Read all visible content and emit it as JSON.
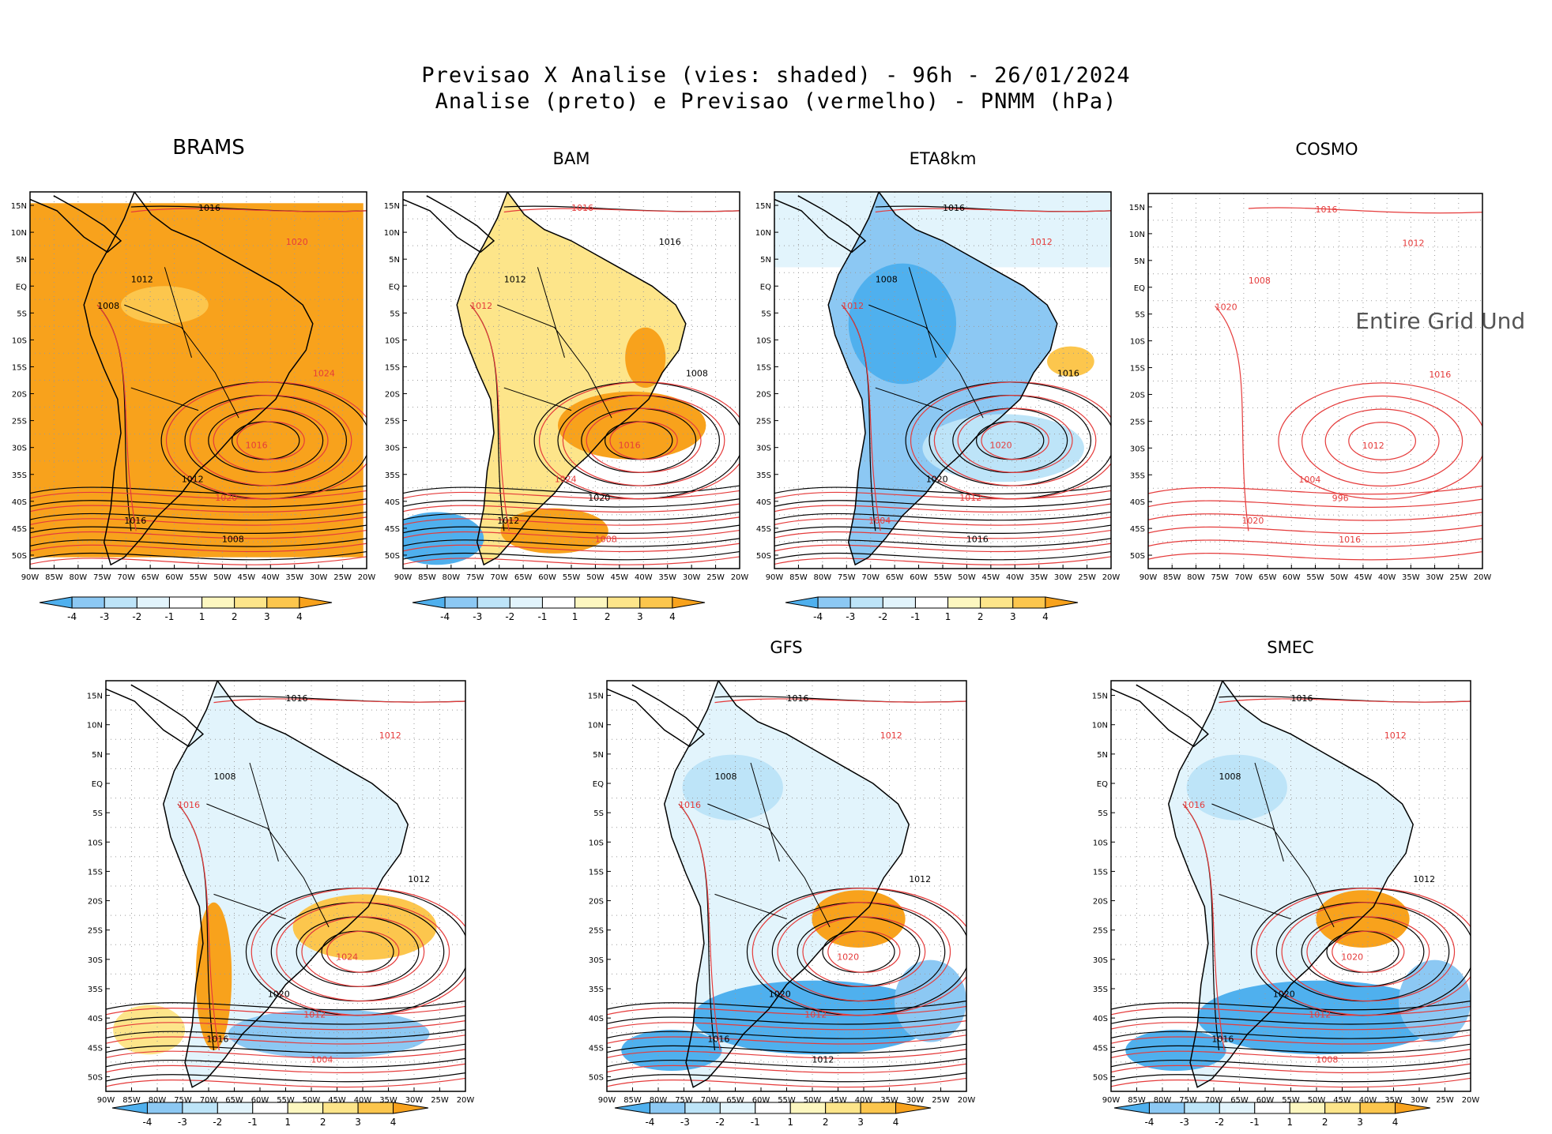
{
  "title": {
    "line1": "Previsao X Analise (vies: shaded) - 96h - 26/01/2024",
    "line2": "Analise (preto) e Previsao (vermelho) - PNMM (hPa)"
  },
  "axes": {
    "lat_labels": [
      "15N",
      "10N",
      "5N",
      "EQ",
      "5S",
      "10S",
      "15S",
      "20S",
      "25S",
      "30S",
      "35S",
      "40S",
      "45S",
      "50S"
    ],
    "lon_labels": [
      "90W",
      "85W",
      "80W",
      "75W",
      "70W",
      "65W",
      "60W",
      "55W",
      "50W",
      "45W",
      "40W",
      "35W",
      "30W",
      "25W",
      "20W"
    ]
  },
  "colorbar": {
    "labels": [
      "-4",
      "-3",
      "-2",
      "-1",
      "1",
      "2",
      "3",
      "4"
    ],
    "colors": [
      "#4fb0ee",
      "#8cc8f3",
      "#bde4f8",
      "#e2f4fc",
      "#ffffff",
      "#fdf7c0",
      "#fde58a",
      "#fcc64d",
      "#f8a21c"
    ]
  },
  "contour_colors": {
    "analysis": "#000000",
    "forecast": "#e53b3b"
  },
  "panels": [
    {
      "id": "brams",
      "title": "BRAMS",
      "bias": "orange",
      "labels": [
        {
          "t": "1016",
          "c": "k"
        },
        {
          "t": "1020",
          "c": "r"
        },
        {
          "t": "1012",
          "c": "k"
        },
        {
          "t": "1008",
          "c": "k"
        },
        {
          "t": "1024",
          "c": "r"
        },
        {
          "t": "1016",
          "c": "r"
        },
        {
          "t": "1012",
          "c": "k"
        },
        {
          "t": "1020",
          "c": "r"
        },
        {
          "t": "1016",
          "c": "k"
        },
        {
          "t": "1008",
          "c": "k"
        }
      ]
    },
    {
      "id": "bam",
      "title": "BAM",
      "bias": "mixed-warm",
      "labels": [
        {
          "t": "1016",
          "c": "r"
        },
        {
          "t": "1016",
          "c": "k"
        },
        {
          "t": "1012",
          "c": "k"
        },
        {
          "t": "1012",
          "c": "r"
        },
        {
          "t": "1008",
          "c": "k"
        },
        {
          "t": "1016",
          "c": "r"
        },
        {
          "t": "1024",
          "c": "r"
        },
        {
          "t": "1020",
          "c": "k"
        },
        {
          "t": "1012",
          "c": "k"
        },
        {
          "t": "1008",
          "c": "r"
        }
      ]
    },
    {
      "id": "eta8km",
      "title": "ETA8km",
      "bias": "mixed-cold",
      "labels": [
        {
          "t": "1016",
          "c": "k"
        },
        {
          "t": "1012",
          "c": "r"
        },
        {
          "t": "1008",
          "c": "k"
        },
        {
          "t": "1012",
          "c": "r"
        },
        {
          "t": "1016",
          "c": "k"
        },
        {
          "t": "1020",
          "c": "r"
        },
        {
          "t": "1020",
          "c": "k"
        },
        {
          "t": "1012",
          "c": "r"
        },
        {
          "t": "1004",
          "c": "r"
        },
        {
          "t": "1016",
          "c": "k"
        }
      ]
    },
    {
      "id": "cosmo",
      "title": "COSMO",
      "bias": "none",
      "annotation": "Entire Grid Und",
      "labels": [
        {
          "t": "1016",
          "c": "r"
        },
        {
          "t": "1012",
          "c": "r"
        },
        {
          "t": "1008",
          "c": "r"
        },
        {
          "t": "1020",
          "c": "r"
        },
        {
          "t": "1016",
          "c": "r"
        },
        {
          "t": "1012",
          "c": "r"
        },
        {
          "t": "1004",
          "c": "r"
        },
        {
          "t": "996",
          "c": "r"
        },
        {
          "t": "1020",
          "c": "r"
        },
        {
          "t": "1016",
          "c": "r"
        }
      ]
    },
    {
      "id": "unnamed",
      "title": "",
      "bias": "mixed-bottom",
      "labels": [
        {
          "t": "1016",
          "c": "k"
        },
        {
          "t": "1012",
          "c": "r"
        },
        {
          "t": "1008",
          "c": "k"
        },
        {
          "t": "1016",
          "c": "r"
        },
        {
          "t": "1012",
          "c": "k"
        },
        {
          "t": "1024",
          "c": "r"
        },
        {
          "t": "1020",
          "c": "k"
        },
        {
          "t": "1012",
          "c": "r"
        },
        {
          "t": "1016",
          "c": "k"
        },
        {
          "t": "1004",
          "c": "r"
        }
      ]
    },
    {
      "id": "gfs",
      "title": "GFS",
      "bias": "mixed-cold-south",
      "labels": [
        {
          "t": "1016",
          "c": "k"
        },
        {
          "t": "1012",
          "c": "r"
        },
        {
          "t": "1008",
          "c": "k"
        },
        {
          "t": "1016",
          "c": "r"
        },
        {
          "t": "1012",
          "c": "k"
        },
        {
          "t": "1020",
          "c": "r"
        },
        {
          "t": "1020",
          "c": "k"
        },
        {
          "t": "1012",
          "c": "r"
        },
        {
          "t": "1016",
          "c": "k"
        },
        {
          "t": "1012",
          "c": "k"
        }
      ]
    },
    {
      "id": "smec",
      "title": "SMEC",
      "bias": "mixed-cold-south",
      "labels": [
        {
          "t": "1016",
          "c": "k"
        },
        {
          "t": "1012",
          "c": "r"
        },
        {
          "t": "1008",
          "c": "k"
        },
        {
          "t": "1016",
          "c": "r"
        },
        {
          "t": "1012",
          "c": "k"
        },
        {
          "t": "1020",
          "c": "r"
        },
        {
          "t": "1020",
          "c": "k"
        },
        {
          "t": "1012",
          "c": "r"
        },
        {
          "t": "1016",
          "c": "k"
        },
        {
          "t": "1008",
          "c": "r"
        }
      ]
    }
  ]
}
